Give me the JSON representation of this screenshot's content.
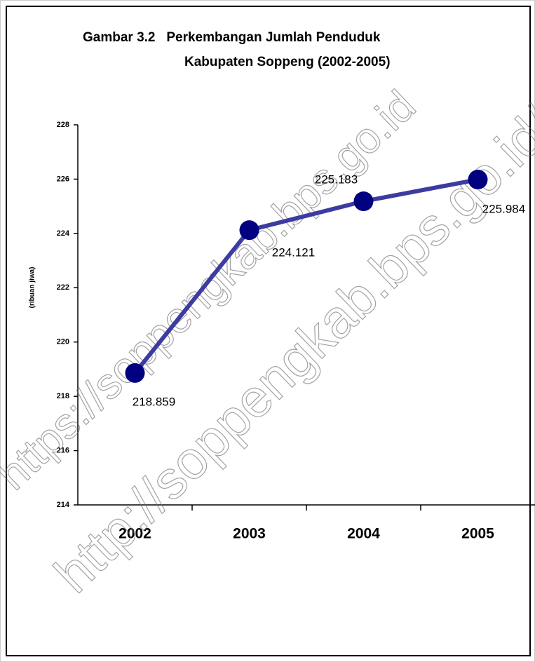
{
  "chart_data": {
    "type": "line",
    "title": [
      "Gambar 3.2   Perkembangan Jumlah Penduduk",
      "Kabupaten Soppeng (2002-2005)"
    ],
    "y_label": "(ribuan jiwa)",
    "categories": [
      "2002",
      "2003",
      "2004",
      "2005"
    ],
    "values": [
      218.859,
      224.121,
      225.183,
      225.984
    ],
    "color": "#3c3ca0",
    "marker_color": "#000080",
    "ylim": [
      214,
      228
    ],
    "yticks": [
      214,
      216,
      218,
      220,
      222,
      224,
      226,
      228
    ],
    "grid": false,
    "watermarks": [
      "https://soppengkab.bps.go.id",
      "http://soppengkab.bps.go.id/"
    ]
  }
}
